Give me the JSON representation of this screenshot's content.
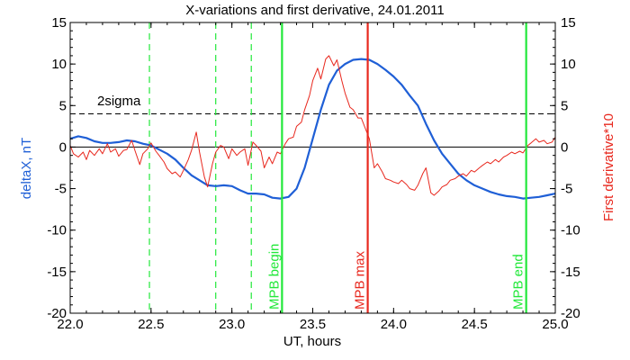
{
  "chart_data": {
    "type": "line",
    "title": "X-variations and first derivative, 24.01.2011",
    "xlabel": "UT, hours",
    "ylabel_left": "deltaX, nT",
    "ylabel_right": "First derivative*10",
    "xlim": [
      22.0,
      25.0
    ],
    "ylim": [
      -20,
      15
    ],
    "x_ticks": [
      "22.0",
      "22.5",
      "23.0",
      "23.5",
      "24.0",
      "24.5",
      "25.0"
    ],
    "y_ticks": [
      "15",
      "10",
      "5",
      "0",
      "-5",
      "-10",
      "-15",
      "-20"
    ],
    "grid": false,
    "colors": {
      "deltaX": "#1f5fd6",
      "derivative": "#e8281e",
      "mpb_edges": "#22e83a",
      "mpb_max": "#e8281e",
      "dashed_green": "#22e83a",
      "axis_left_label": "#1f5fd6",
      "axis_right_label": "#e8281e"
    },
    "reference_lines": {
      "sigma_level": 4,
      "sigma_label": "2sigma",
      "zero_level": 0
    },
    "dashed_markers": [
      22.49,
      22.9,
      23.12
    ],
    "event_lines": [
      {
        "x": 23.31,
        "label": "MPB begin",
        "kind": "edge"
      },
      {
        "x": 23.84,
        "label": "MPB max",
        "kind": "max"
      },
      {
        "x": 24.82,
        "label": "MPB end",
        "kind": "edge"
      }
    ],
    "series": [
      {
        "key": "deltaX",
        "x": [
          22.0,
          22.05,
          22.1,
          22.15,
          22.2,
          22.25,
          22.3,
          22.35,
          22.4,
          22.45,
          22.5,
          22.55,
          22.6,
          22.65,
          22.7,
          22.75,
          22.8,
          22.85,
          22.9,
          22.95,
          23.0,
          23.05,
          23.1,
          23.15,
          23.2,
          23.25,
          23.3,
          23.35,
          23.4,
          23.45,
          23.5,
          23.55,
          23.6,
          23.65,
          23.7,
          23.75,
          23.8,
          23.85,
          23.9,
          23.95,
          24.0,
          24.05,
          24.1,
          24.15,
          24.2,
          24.25,
          24.3,
          24.35,
          24.4,
          24.45,
          24.5,
          24.55,
          24.6,
          24.65,
          24.7,
          24.75,
          24.8,
          24.85,
          24.9,
          24.95,
          25.0
        ],
        "y": [
          1.0,
          1.3,
          1.1,
          0.7,
          0.5,
          0.5,
          0.6,
          0.8,
          0.7,
          0.4,
          0.2,
          -0.3,
          -0.8,
          -1.5,
          -2.5,
          -3.4,
          -4.0,
          -4.6,
          -4.7,
          -4.6,
          -4.7,
          -5.2,
          -5.6,
          -5.6,
          -5.7,
          -6.1,
          -6.2,
          -6.0,
          -5.0,
          -2.5,
          1.0,
          4.5,
          7.5,
          9.2,
          10.0,
          10.5,
          10.6,
          10.5,
          10.0,
          9.3,
          8.5,
          7.5,
          6.2,
          5.0,
          2.8,
          0.8,
          -0.8,
          -2.0,
          -3.2,
          -4.0,
          -4.6,
          -5.0,
          -5.4,
          -5.7,
          -5.9,
          -6.0,
          -6.2,
          -6.1,
          -6.0,
          -5.8,
          -5.6
        ]
      },
      {
        "key": "derivative",
        "x": [
          22.0,
          22.02,
          22.05,
          22.08,
          22.1,
          22.12,
          22.15,
          22.18,
          22.2,
          22.23,
          22.25,
          22.28,
          22.3,
          22.33,
          22.35,
          22.38,
          22.4,
          22.43,
          22.45,
          22.48,
          22.5,
          22.53,
          22.55,
          22.58,
          22.6,
          22.63,
          22.65,
          22.68,
          22.7,
          22.73,
          22.75,
          22.78,
          22.8,
          22.83,
          22.85,
          22.88,
          22.9,
          22.93,
          22.95,
          22.98,
          23.0,
          23.03,
          23.05,
          23.08,
          23.1,
          23.13,
          23.15,
          23.18,
          23.2,
          23.23,
          23.25,
          23.28,
          23.3,
          23.33,
          23.35,
          23.38,
          23.4,
          23.43,
          23.45,
          23.48,
          23.5,
          23.53,
          23.55,
          23.58,
          23.6,
          23.63,
          23.65,
          23.68,
          23.7,
          23.73,
          23.75,
          23.78,
          23.8,
          23.83,
          23.85,
          23.88,
          23.9,
          23.93,
          23.95,
          23.98,
          24.0,
          24.03,
          24.05,
          24.08,
          24.1,
          24.13,
          24.15,
          24.18,
          24.2,
          24.23,
          24.25,
          24.28,
          24.3,
          24.33,
          24.35,
          24.38,
          24.4,
          24.43,
          24.45,
          24.48,
          24.5,
          24.53,
          24.55,
          24.58,
          24.6,
          24.63,
          24.65,
          24.68,
          24.7,
          24.73,
          24.75,
          24.78,
          24.8,
          24.83,
          24.85,
          24.88,
          24.9,
          24.93,
          24.95,
          24.98,
          25.0
        ],
        "y": [
          0.2,
          -0.8,
          -1.2,
          -0.6,
          -1.5,
          -0.4,
          -1.0,
          -0.2,
          -0.8,
          0.4,
          -0.6,
          -0.2,
          -1.1,
          -0.4,
          -0.3,
          0.8,
          -0.4,
          -2.1,
          -0.8,
          -0.2,
          0.5,
          -0.5,
          -1.0,
          -1.8,
          -2.6,
          -3.2,
          -3.0,
          -3.6,
          -2.8,
          -1.5,
          -0.4,
          1.8,
          -0.6,
          -3.6,
          -4.8,
          -2.0,
          -0.6,
          0.2,
          0.0,
          -1.4,
          -0.2,
          -1.0,
          -0.6,
          -0.2,
          -2.2,
          0.6,
          0.2,
          -0.5,
          -2.5,
          -1.2,
          -2.0,
          -0.6,
          -0.8,
          0.4,
          1.0,
          1.2,
          2.5,
          3.0,
          4.5,
          6.2,
          8.0,
          9.5,
          8.2,
          10.6,
          11.0,
          9.8,
          10.5,
          8.0,
          6.5,
          4.8,
          4.5,
          3.5,
          3.5,
          2.0,
          1.0,
          -2.5,
          -2.0,
          -3.0,
          -3.8,
          -4.0,
          -4.2,
          -4.4,
          -4.0,
          -4.5,
          -5.0,
          -5.2,
          -4.6,
          -3.2,
          -2.5,
          -5.5,
          -5.8,
          -5.3,
          -4.8,
          -4.5,
          -4.0,
          -3.8,
          -3.5,
          -3.2,
          -3.5,
          -2.8,
          -3.0,
          -2.5,
          -2.2,
          -1.8,
          -2.0,
          -1.5,
          -1.8,
          -1.2,
          -1.0,
          -0.6,
          -0.8,
          -0.5,
          -0.7,
          0.2,
          0.5,
          1.0,
          0.6,
          0.8,
          0.4,
          0.6,
          1.2
        ]
      }
    ]
  }
}
